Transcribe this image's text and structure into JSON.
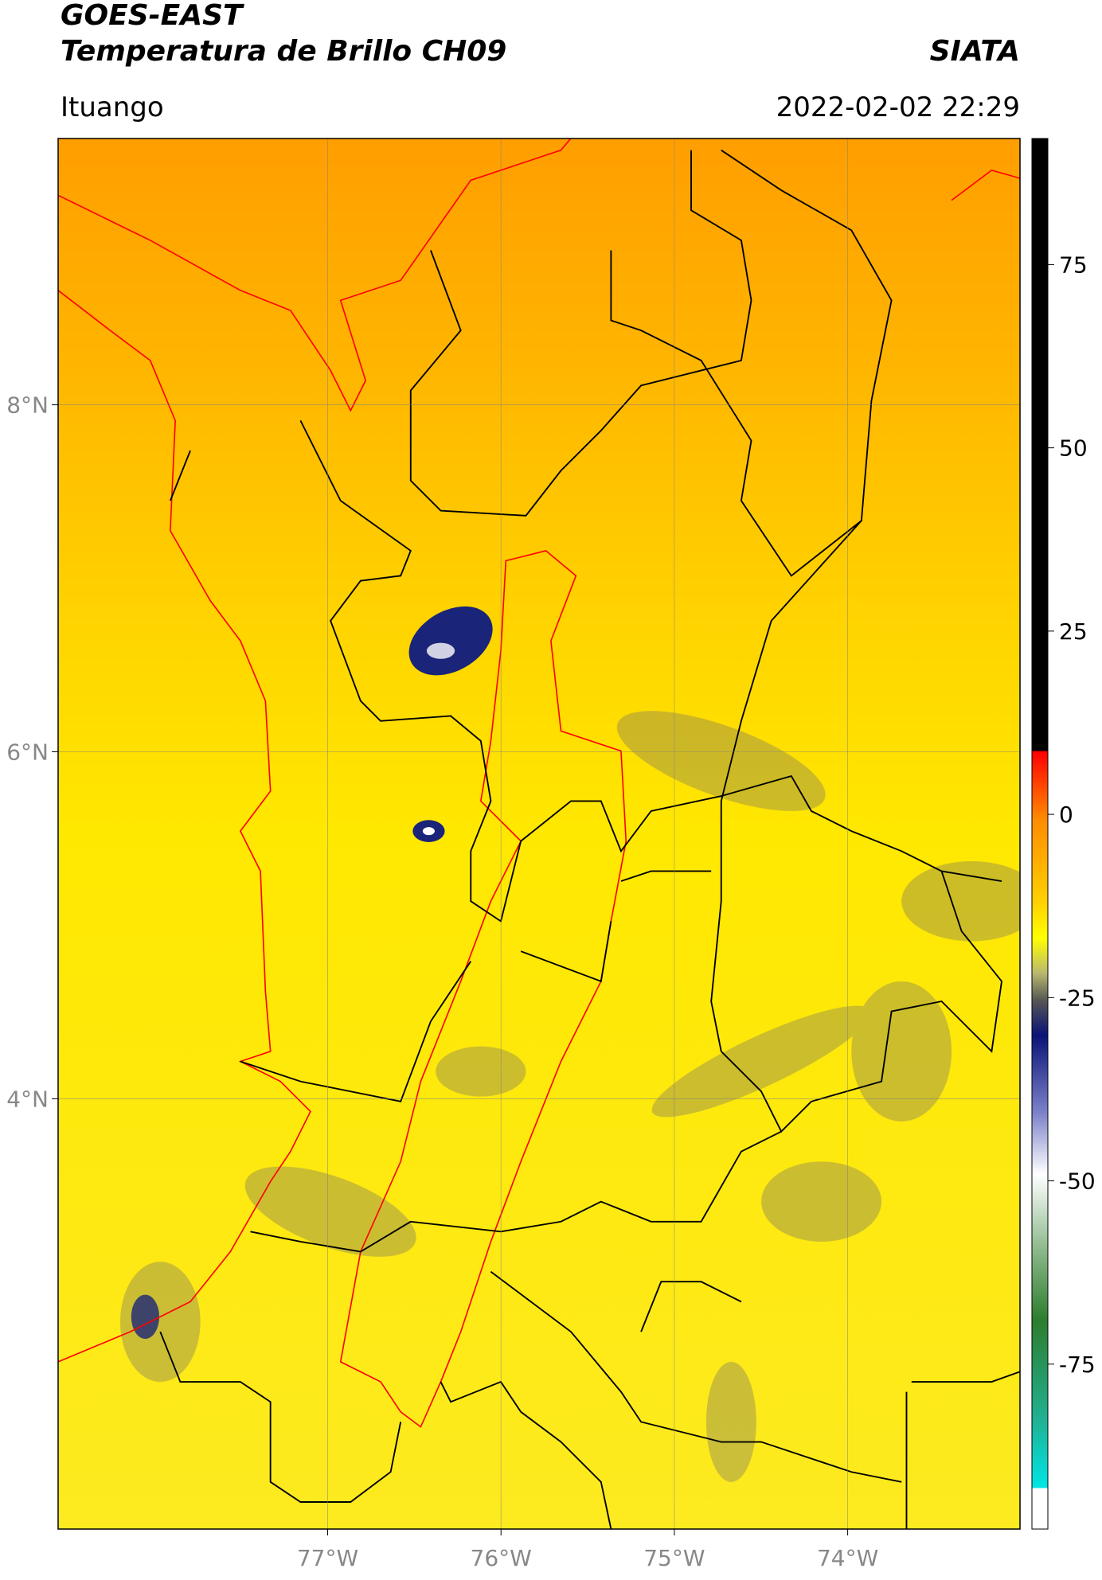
{
  "header": {
    "title": "GOES-EAST",
    "subtitle": "Temperatura de Brillo CH09",
    "source": "SIATA",
    "location": "Ituango",
    "timestamp": "2022-02-02 22:29"
  },
  "map": {
    "xlim": [
      -78.555,
      -73.006
    ],
    "ylim": [
      1.52,
      9.535
    ],
    "xticks": [
      {
        "value": -77,
        "label": "77°W"
      },
      {
        "value": -76,
        "label": "76°W"
      },
      {
        "value": -75,
        "label": "75°W"
      },
      {
        "value": -74,
        "label": "74°W"
      }
    ],
    "yticks": [
      {
        "value": 8,
        "label": "8°N"
      },
      {
        "value": 6,
        "label": "6°N"
      },
      {
        "value": 4,
        "label": "4°N"
      }
    ],
    "grid": true
  },
  "colorbar": {
    "lim": [
      -97.5,
      92.2
    ],
    "ticks": [
      75,
      50,
      25,
      0,
      -25,
      -50,
      -75
    ]
  }
}
